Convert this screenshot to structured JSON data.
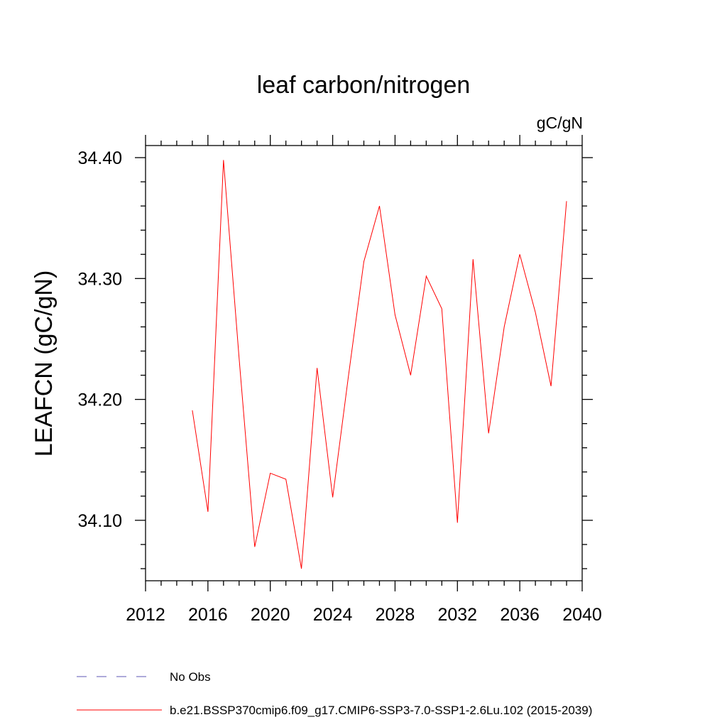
{
  "chart_data": {
    "type": "line",
    "title": "leaf carbon/nitrogen",
    "units": "gC/gN",
    "xlabel": "",
    "ylabel": "LEAFCN  (gC/gN)",
    "xlim": [
      2012,
      2040
    ],
    "ylim": [
      34.05,
      34.41
    ],
    "x_major_ticks": [
      2012,
      2016,
      2020,
      2024,
      2028,
      2032,
      2036,
      2040
    ],
    "x_tick_labels": [
      "2012",
      "2016",
      "2020",
      "2024",
      "2028",
      "2032",
      "2036",
      "2040"
    ],
    "x_minor_step": 1,
    "y_major_ticks": [
      34.1,
      34.2,
      34.3,
      34.4
    ],
    "y_tick_labels": [
      "34.10",
      "34.20",
      "34.30",
      "34.40"
    ],
    "y_minor_step": 0.02,
    "grid": false,
    "series": [
      {
        "name": "b.e21.BSSP370cmip6.f09_g17.CMIP6-SSP3-7.0-SSP1-2.6Lu.102 (2015-2039)",
        "color": "#ff0000",
        "style": "solid",
        "x": [
          2015,
          2016,
          2017,
          2018,
          2019,
          2020,
          2021,
          2022,
          2023,
          2024,
          2025,
          2026,
          2027,
          2028,
          2029,
          2030,
          2031,
          2032,
          2033,
          2034,
          2035,
          2036,
          2037,
          2038,
          2039
        ],
        "values": [
          34.191,
          34.107,
          34.398,
          34.234,
          34.078,
          34.139,
          34.134,
          34.06,
          34.226,
          34.119,
          34.218,
          34.314,
          34.36,
          34.27,
          34.22,
          34.302,
          34.275,
          34.098,
          34.316,
          34.172,
          34.26,
          34.32,
          34.272,
          34.211,
          34.364
        ]
      }
    ],
    "legend": {
      "placement": "bottom-left",
      "entries": [
        {
          "label": "No Obs",
          "color": "#5e55b5",
          "style": "dashed"
        },
        {
          "label": "b.e21.BSSP370cmip6.f09_g17.CMIP6-SSP3-7.0-SSP1-2.6Lu.102 (2015-2039)",
          "color": "#ff0000",
          "style": "solid"
        }
      ]
    }
  }
}
